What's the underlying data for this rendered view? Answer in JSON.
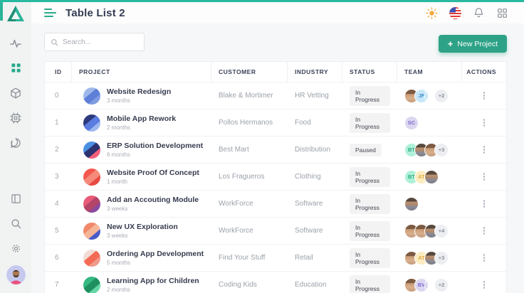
{
  "colors": {
    "accent": "#2ea287",
    "accent_bright": "#29b9a1",
    "sidebar_bg": "#f1f3f3",
    "page_bg": "#f6f7f8",
    "badge_bg": "#f3f3f4"
  },
  "sidebar": {
    "logo": "triangle-logo",
    "items": [
      {
        "icon": "activity-icon",
        "active": false
      },
      {
        "icon": "dashboard-grid-icon",
        "active": true
      },
      {
        "icon": "package-box-icon",
        "active": false
      },
      {
        "icon": "cpu-icon",
        "active": false
      },
      {
        "icon": "chat-bubble-icon",
        "active": false
      }
    ],
    "bottom_items": [
      {
        "icon": "layout-panel-icon",
        "active": false
      },
      {
        "icon": "search-icon",
        "active": false
      },
      {
        "icon": "settings-gear-icon",
        "active": false
      }
    ]
  },
  "header": {
    "title": "Table List 2",
    "icons": [
      {
        "icon": "sun-icon"
      },
      {
        "icon": "us-flag-icon"
      },
      {
        "icon": "bell-icon"
      },
      {
        "icon": "apps-grid-icon"
      }
    ]
  },
  "toolbar": {
    "search_placeholder": "Search...",
    "new_project_label": "New Project",
    "plus_glyph": "+"
  },
  "table": {
    "columns": [
      "ID",
      "PROJECT",
      "CUSTOMER",
      "INDUSTRY",
      "STATUS",
      "TEAM",
      "ACTIONS"
    ],
    "rows": [
      {
        "id": "0",
        "project": "Website Redesign",
        "duration": "3 months",
        "customer": "Blake & Mortimer",
        "industry": "HR Vetting",
        "status": "In Progress",
        "icon_colors": [
          "#9fb8ea",
          "#5e7fd8",
          "#7f9ce2"
        ],
        "team": [
          {
            "t": "photo",
            "v": "a"
          },
          {
            "t": "init",
            "label": "JF",
            "bg": "#c7e6f8",
            "fg": "#3f8cc4"
          },
          {
            "t": "photo",
            "v": "c"
          },
          {
            "t": "more",
            "label": "+2",
            "bg": "#eceef1",
            "fg": "#8a8f98"
          }
        ]
      },
      {
        "id": "1",
        "project": "Mobile App Rework",
        "duration": "2 months",
        "customer": "Pollos Hermanos",
        "industry": "Food",
        "status": "In Progress",
        "icon_colors": [
          "#2e3a7c",
          "#5a7ce0",
          "#9db9f0"
        ],
        "team": [
          {
            "t": "init",
            "label": "SC",
            "bg": "#dcd6f0",
            "fg": "#7a6ad0"
          }
        ]
      },
      {
        "id": "2",
        "project": "ERP Solution Development",
        "duration": "6 months",
        "customer": "Best Mart",
        "industry": "Distribution",
        "status": "Paused",
        "icon_colors": [
          "#4a90e2",
          "#2c3270",
          "#f2607c"
        ],
        "team": [
          {
            "t": "init",
            "label": "BT",
            "bg": "#aff0d8",
            "fg": "#2aa882"
          },
          {
            "t": "photo",
            "v": "b"
          },
          {
            "t": "photo",
            "v": "a"
          },
          {
            "t": "more",
            "label": "+3",
            "bg": "#eceef1",
            "fg": "#8a8f98"
          }
        ]
      },
      {
        "id": "3",
        "project": "Website Proof Of Concept",
        "duration": "1 month",
        "customer": "Los Fragueros",
        "industry": "Clothing",
        "status": "In Progress",
        "icon_colors": [
          "#f2574e",
          "#f58a7a",
          "#e84a44"
        ],
        "team": [
          {
            "t": "init",
            "label": "BT",
            "bg": "#aff0d8",
            "fg": "#2aa882"
          },
          {
            "t": "init",
            "label": "AT",
            "bg": "#fcecc0",
            "fg": "#dca83e"
          },
          {
            "t": "photo",
            "v": "b"
          }
        ]
      },
      {
        "id": "4",
        "project": "Add an Accouting Module",
        "duration": "3 weeks",
        "customer": "WorkForce",
        "industry": "Software",
        "status": "In Progress",
        "icon_colors": [
          "#e85a78",
          "#b44468",
          "#8a4a9e"
        ],
        "team": [
          {
            "t": "photo",
            "v": "b"
          }
        ]
      },
      {
        "id": "5",
        "project": "New UX Exploration",
        "duration": "3 weeks",
        "customer": "WorkForce",
        "industry": "Software",
        "status": "In Progress",
        "icon_colors": [
          "#f2876a",
          "#f5b596",
          "#4a5bc8"
        ],
        "team": [
          {
            "t": "photo",
            "v": "a"
          },
          {
            "t": "photo",
            "v": "a"
          },
          {
            "t": "photo",
            "v": "b"
          },
          {
            "t": "more",
            "label": "+4",
            "bg": "#eceef1",
            "fg": "#8a8f98"
          }
        ]
      },
      {
        "id": "6",
        "project": "Ordering App Development",
        "duration": "5 months",
        "customer": "Find Your Stuff",
        "industry": "Retail",
        "status": "In Progress",
        "icon_colors": [
          "#f2ddd6",
          "#f46b55",
          "#f09a8a"
        ],
        "team": [
          {
            "t": "photo",
            "v": "a"
          },
          {
            "t": "init",
            "label": "AT",
            "bg": "#fcecc0",
            "fg": "#dca83e"
          },
          {
            "t": "photo",
            "v": "b"
          },
          {
            "t": "more",
            "label": "+3",
            "bg": "#eceef1",
            "fg": "#8a8f98"
          }
        ]
      },
      {
        "id": "7",
        "project": "Learning App for Children",
        "duration": "2 months",
        "customer": "Coding Kids",
        "industry": "Education",
        "status": "In Progress",
        "icon_colors": [
          "#35b882",
          "#1f8f5f",
          "#64d6a4"
        ],
        "team": [
          {
            "t": "photo",
            "v": "a"
          },
          {
            "t": "init",
            "label": "BV",
            "bg": "#dcd6f0",
            "fg": "#7a6ad0"
          },
          {
            "t": "photo",
            "v": "c"
          },
          {
            "t": "more",
            "label": "+2",
            "bg": "#eceef1",
            "fg": "#8a8f98"
          }
        ]
      }
    ]
  }
}
